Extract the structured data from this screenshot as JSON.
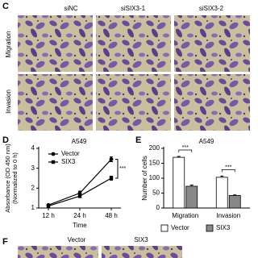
{
  "panel_c": {
    "label": "C",
    "columns": [
      "siNC",
      "siSIX3-1",
      "siSIX3-2"
    ],
    "rows": [
      "Migration",
      "Invasion"
    ]
  },
  "panel_f": {
    "label": "F",
    "columns": [
      "Vector",
      "SIX3"
    ]
  },
  "chart_data": [
    {
      "type": "line",
      "panel_label": "D",
      "title": "A549",
      "ylabel": [
        "Absorbance (OD 450 nm)",
        "(Normalized to 0 h)"
      ],
      "xlabel": "Time",
      "categories": [
        "12 h",
        "24 h",
        "48 h"
      ],
      "series": [
        {
          "name": "Vector",
          "color": "#000000",
          "marker": "circle",
          "values": [
            1.15,
            1.75,
            3.45
          ],
          "errors": [
            0.05,
            0.1,
            0.12
          ]
        },
        {
          "name": "SIX3",
          "color": "#000000",
          "marker": "square",
          "values": [
            1.1,
            1.6,
            2.5
          ],
          "errors": [
            0.05,
            0.08,
            0.1
          ]
        }
      ],
      "ylim": [
        1,
        4
      ],
      "yticks": [
        1,
        2,
        3,
        4
      ],
      "annotations": [
        "***"
      ]
    },
    {
      "type": "bar",
      "panel_label": "E",
      "title": "A549",
      "ylabel": "Number of cells",
      "categories": [
        "Migration",
        "Invasion"
      ],
      "series": [
        {
          "name": "Vector",
          "color": "#ffffff",
          "values": [
            170,
            103
          ],
          "errors": [
            3,
            4
          ]
        },
        {
          "name": "SIX3",
          "color": "#888888",
          "values": [
            73,
            42
          ],
          "errors": [
            4,
            2
          ]
        }
      ],
      "ylim": [
        0,
        200
      ],
      "yticks": [
        0,
        50,
        100,
        150,
        200
      ],
      "annotations": [
        "***",
        "***"
      ]
    }
  ]
}
